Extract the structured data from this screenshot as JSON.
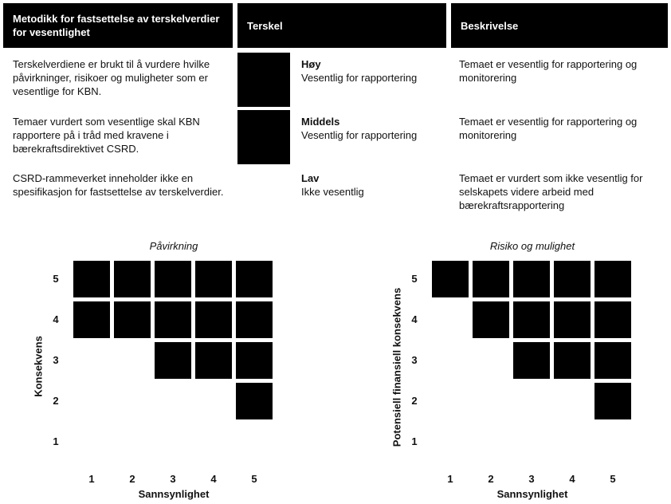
{
  "table": {
    "headers": [
      "Metodikk for fastsettelse av terskelverdier for vesentlighet",
      "Terskel",
      "Beskrivelse"
    ],
    "rows": [
      {
        "method": "Terskelverdiene er brukt til å vurdere hvilke påvirkninger, risikoer og muligheter som er vesentlige for KBN.",
        "level": "Høy",
        "level_desc": "Vesentlig for rapportering",
        "description": "Temaet er vesentlig for rapportering og monitorering",
        "swatch": "#000000"
      },
      {
        "method": "Temaer vurdert som vesentlige skal KBN rapportere på i tråd med kravene i bærekraftsdirektivet CSRD.",
        "level": "Middels",
        "level_desc": "Vesentlig for rapportering",
        "description": "Temaet er vesentlig for rapportering og monitorering",
        "swatch": "#000000"
      },
      {
        "method": "CSRD-rammeverket inneholder ikke en spesifikasjon for fastsettelse av terskelverdier.",
        "level": "Lav",
        "level_desc": "Ikke vesentlig",
        "description": "Temaet er vurdert som ikke vesentlig for selskapets videre arbeid med bærekraftsrapportering",
        "swatch": null
      }
    ]
  },
  "chart_data": [
    {
      "type": "heatmap",
      "title": "Påvirkning",
      "xlabel": "Sannsynlighet",
      "ylabel": "Konsekvens",
      "x": [
        1,
        2,
        3,
        4,
        5
      ],
      "y": [
        1,
        2,
        3,
        4,
        5
      ],
      "filled_cells": [
        [
          1,
          5
        ],
        [
          2,
          5
        ],
        [
          3,
          5
        ],
        [
          4,
          5
        ],
        [
          5,
          5
        ],
        [
          1,
          4
        ],
        [
          2,
          4
        ],
        [
          3,
          4
        ],
        [
          4,
          4
        ],
        [
          5,
          4
        ],
        [
          3,
          3
        ],
        [
          4,
          3
        ],
        [
          5,
          3
        ],
        [
          5,
          2
        ]
      ],
      "fill_color": "#000000"
    },
    {
      "type": "heatmap",
      "title": "Risiko og mulighet",
      "xlabel": "Sannsynlighet",
      "ylabel": "Potensiell finansiell konsekvens",
      "x": [
        1,
        2,
        3,
        4,
        5
      ],
      "y": [
        1,
        2,
        3,
        4,
        5
      ],
      "filled_cells": [
        [
          1,
          5
        ],
        [
          2,
          5
        ],
        [
          3,
          5
        ],
        [
          4,
          5
        ],
        [
          5,
          5
        ],
        [
          2,
          4
        ],
        [
          3,
          4
        ],
        [
          4,
          4
        ],
        [
          5,
          4
        ],
        [
          3,
          3
        ],
        [
          4,
          3
        ],
        [
          5,
          3
        ],
        [
          5,
          2
        ]
      ],
      "fill_color": "#000000"
    }
  ]
}
